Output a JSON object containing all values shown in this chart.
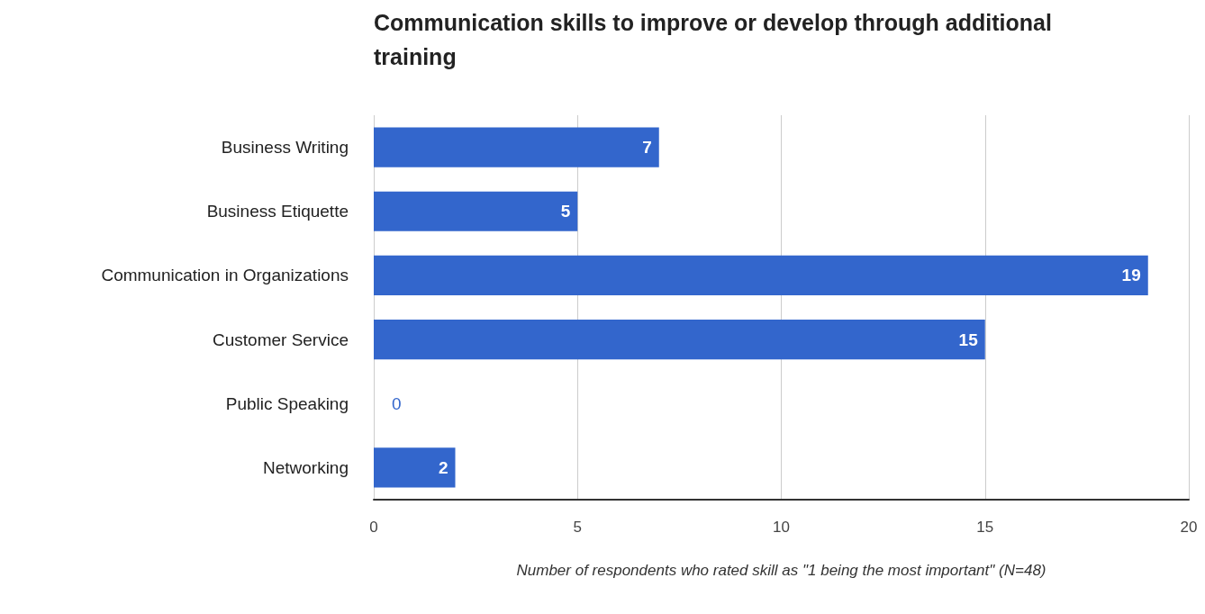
{
  "chart_data": {
    "type": "bar",
    "orientation": "horizontal",
    "title": "Communication skills to improve or develop through additional training",
    "xlabel": "Number of respondents who rated skill as \"1 being the most important\" (N=48)",
    "categories": [
      "Business Writing",
      "Business Etiquette",
      "Communication in Organizations",
      "Customer Service",
      "Public Speaking",
      "Networking"
    ],
    "values": [
      7,
      5,
      19,
      15,
      0,
      2
    ],
    "color": "#3366cc",
    "data_labels": true,
    "xlim": [
      0,
      20
    ],
    "xticks": [
      0,
      5,
      10,
      15,
      20
    ],
    "grid": "x"
  }
}
